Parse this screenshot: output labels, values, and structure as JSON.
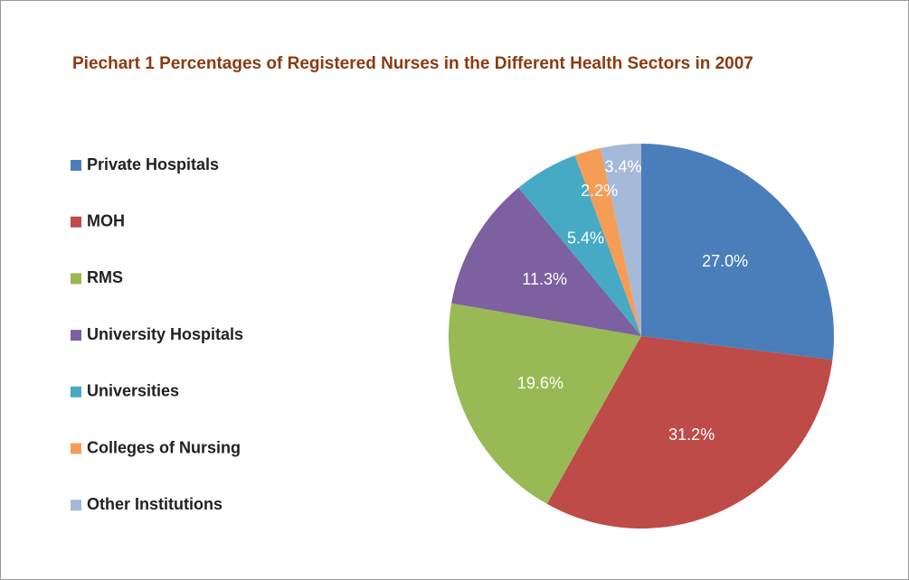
{
  "chart_data": {
    "type": "pie",
    "title": "Piechart 1 Percentages of Registered Nurses in the Different Health Sectors in 2007",
    "categories": [
      "Private Hospitals",
      "MOH",
      "RMS",
      "University Hospitals",
      "Universities",
      "Colleges of Nursing",
      "Other Institutions"
    ],
    "values": [
      27.0,
      31.2,
      19.6,
      11.3,
      5.4,
      2.2,
      3.4
    ],
    "value_labels": [
      "27.0%",
      "31.2%",
      "19.6%",
      "11.3%",
      "5.4%",
      "2.2%",
      "3.4%"
    ],
    "colors": [
      "#4a7ebb",
      "#be4b48",
      "#98b954",
      "#7d60a0",
      "#46aac5",
      "#f59d56",
      "#a5b9d9"
    ],
    "legend": "left"
  }
}
